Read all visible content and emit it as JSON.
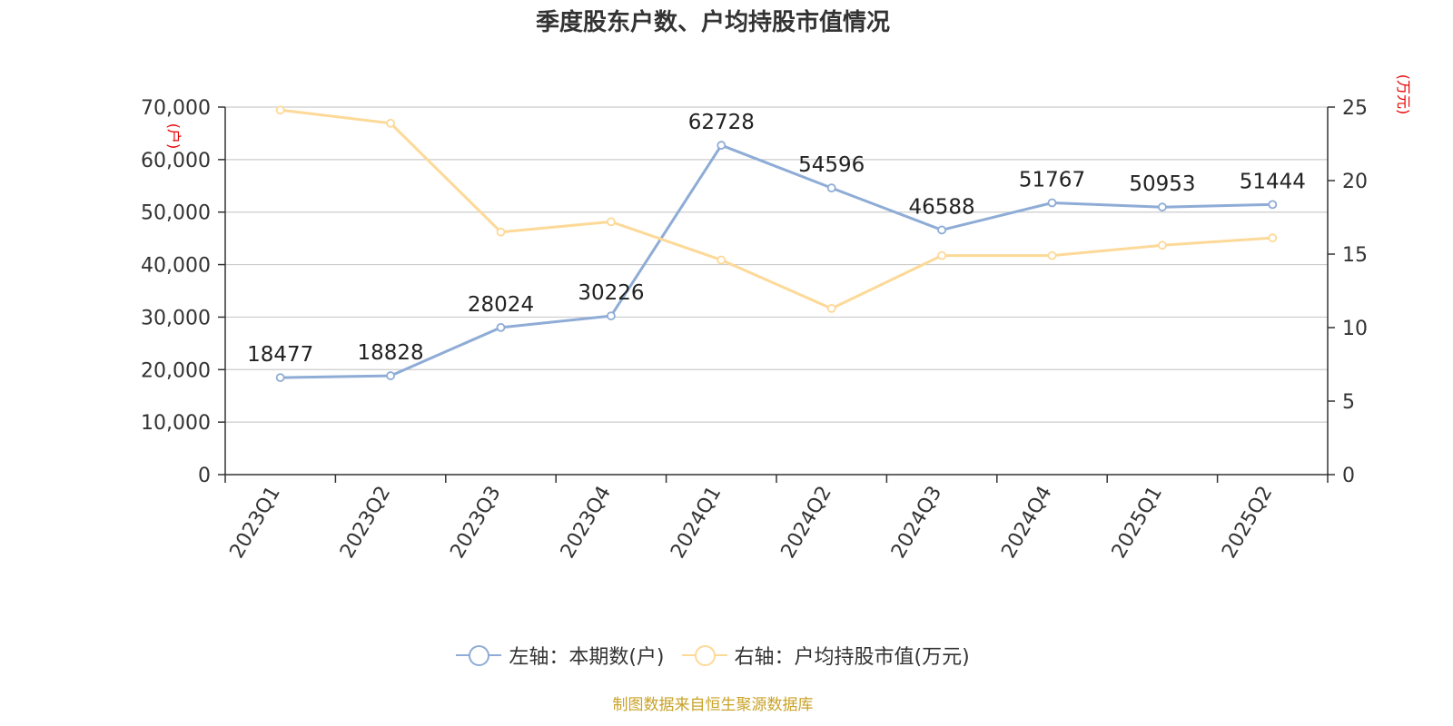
{
  "chart_data": {
    "type": "line",
    "title": "季度股东户数、户均持股市值情况",
    "categories": [
      "2023Q1",
      "2023Q2",
      "2023Q3",
      "2023Q4",
      "2024Q1",
      "2024Q2",
      "2024Q3",
      "2024Q4",
      "2025Q1",
      "2025Q2"
    ],
    "series": [
      {
        "name": "左轴：本期数(户)",
        "axis": "left",
        "color": "#8eacd6",
        "values": [
          18477,
          18828,
          28024,
          30226,
          62728,
          54596,
          46588,
          51767,
          50953,
          51444
        ],
        "data_labels": [
          "18477",
          "18828",
          "28024",
          "30226",
          "62728",
          "54596",
          "46588",
          "51767",
          "50953",
          "51444"
        ]
      },
      {
        "name": "右轴：户均持股市值(万元)",
        "axis": "right",
        "color": "#fdd998",
        "values": [
          24.8,
          23.9,
          16.5,
          17.2,
          14.6,
          11.3,
          14.9,
          14.9,
          15.6,
          16.1
        ]
      }
    ],
    "y_left": {
      "label": "(户)",
      "min": 0,
      "max": 70000,
      "ticks": [
        0,
        10000,
        20000,
        30000,
        40000,
        50000,
        60000,
        70000
      ],
      "tick_labels": [
        "0",
        "10,000",
        "20,000",
        "30,000",
        "40,000",
        "50,000",
        "60,000",
        "70,000"
      ]
    },
    "y_right": {
      "label": "(万元)",
      "min": 0,
      "max": 25,
      "ticks": [
        0,
        5,
        10,
        15,
        20,
        25
      ],
      "tick_labels": [
        "0",
        "5",
        "10",
        "15",
        "20",
        "25"
      ]
    },
    "grid": true,
    "legend_position": "bottom"
  },
  "source": "制图数据来自恒生聚源数据库",
  "axis_label_color": "#e60000"
}
